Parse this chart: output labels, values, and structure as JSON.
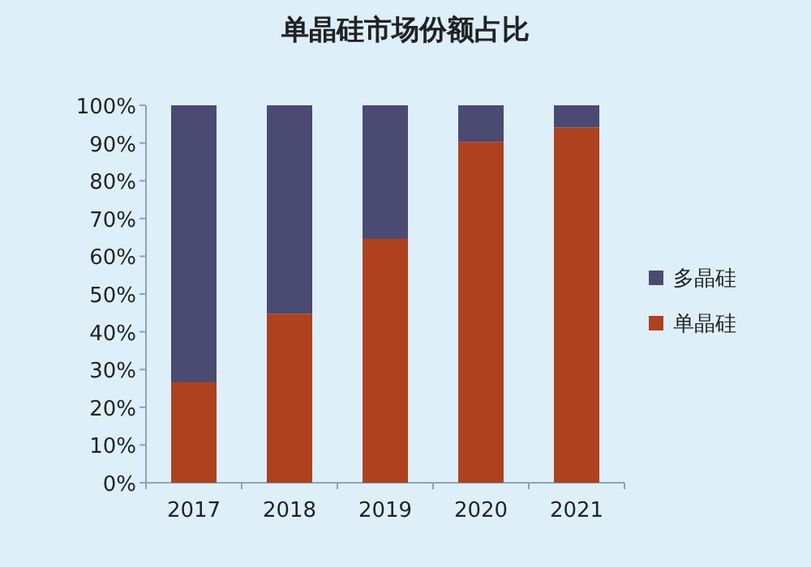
{
  "chart_data": {
    "type": "bar",
    "title": "单晶硅市场份额占比",
    "stacked": true,
    "categories": [
      "2017",
      "2018",
      "2019",
      "2020",
      "2021"
    ],
    "series": [
      {
        "name": "单晶硅",
        "color": "#b0411f",
        "values": [
          26.6,
          44.8,
          64.6,
          90.3,
          94.1
        ]
      },
      {
        "name": "多晶硅",
        "color": "#4a4a72",
        "values": [
          73.4,
          55.2,
          35.4,
          9.7,
          5.9
        ]
      }
    ],
    "ylim": [
      0,
      100
    ],
    "yticks": [
      {
        "value": 0,
        "label": "0%"
      },
      {
        "value": 10,
        "label": "10%"
      },
      {
        "value": 20,
        "label": "20%"
      },
      {
        "value": 30,
        "label": "30%"
      },
      {
        "value": 40,
        "label": "40%"
      },
      {
        "value": 50,
        "label": "50%"
      },
      {
        "value": 60,
        "label": "60%"
      },
      {
        "value": 70,
        "label": "70%"
      },
      {
        "value": 80,
        "label": "80%"
      },
      {
        "value": 90,
        "label": "90%"
      },
      {
        "value": 100,
        "label": "100%"
      }
    ],
    "legend": "right"
  }
}
